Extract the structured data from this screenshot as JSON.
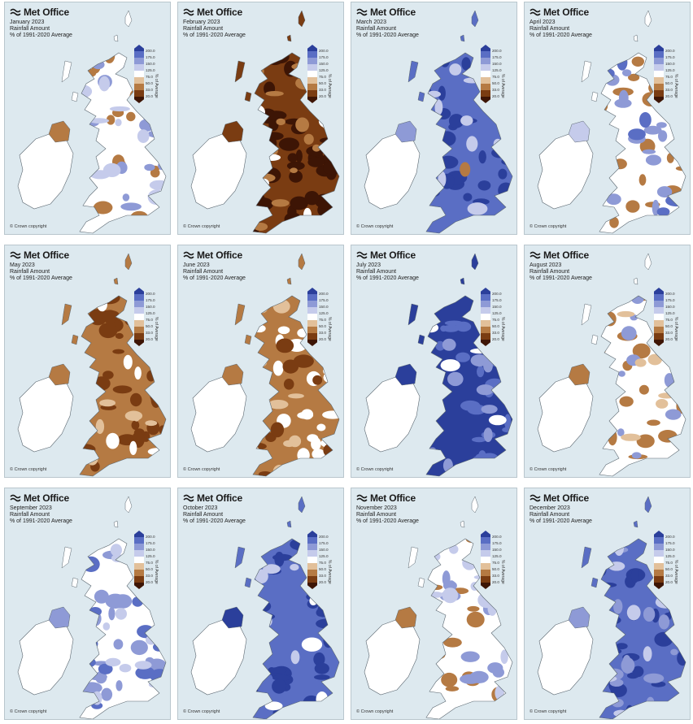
{
  "brand": "Met Office",
  "subtitle_line1": "Rainfall Amount",
  "subtitle_line2": "% of 1991-2020 Average",
  "copyright": "© Crown copyright",
  "legend": {
    "title": "% of Average",
    "labels": [
      "200.0",
      "175.0",
      "150.0",
      "125.0",
      "75.0",
      "50.0",
      "33.0",
      "20.0"
    ],
    "colors": [
      "#2b3f9b",
      "#5a6ec4",
      "#8e9ad6",
      "#c5cbeb",
      "#ffffff",
      "#e2c09a",
      "#b57a43",
      "#7a3c12",
      "#3d1505"
    ]
  },
  "colors": {
    "water": "#dde9ef",
    "ireland": "#ffffff",
    "outline": "#5b6770"
  },
  "maps": [
    {
      "month": "January 2023",
      "category": "near-average",
      "gb": "#ffffff",
      "blobs": [
        [
          "#b57a43",
          0.22
        ],
        [
          "#8e9ad6",
          0.14
        ],
        [
          "#c5cbeb",
          0.12
        ]
      ],
      "ni": "#b57a43"
    },
    {
      "month": "February 2023",
      "category": "very-dry",
      "gb": "#7a3c12",
      "blobs": [
        [
          "#3d1505",
          0.5
        ],
        [
          "#b57a43",
          0.25
        ],
        [
          "#ffffff",
          0.05
        ]
      ],
      "ni": "#7a3c12"
    },
    {
      "month": "March 2023",
      "category": "wet",
      "gb": "#5a6ec4",
      "blobs": [
        [
          "#2b3f9b",
          0.45
        ],
        [
          "#c5cbeb",
          0.12
        ],
        [
          "#b57a43",
          0.05
        ]
      ],
      "ni": "#8e9ad6"
    },
    {
      "month": "April 2023",
      "category": "mixed",
      "gb": "#ffffff",
      "blobs": [
        [
          "#b57a43",
          0.2
        ],
        [
          "#8e9ad6",
          0.2
        ],
        [
          "#5a6ec4",
          0.08
        ]
      ],
      "ni": "#c5cbeb"
    },
    {
      "month": "May 2023",
      "category": "dry",
      "gb": "#b57a43",
      "blobs": [
        [
          "#7a3c12",
          0.4
        ],
        [
          "#ffffff",
          0.08
        ],
        [
          "#e2c09a",
          0.1
        ]
      ],
      "ni": "#b57a43"
    },
    {
      "month": "June 2023",
      "category": "dry",
      "gb": "#b57a43",
      "blobs": [
        [
          "#ffffff",
          0.3
        ],
        [
          "#7a3c12",
          0.15
        ],
        [
          "#e2c09a",
          0.12
        ]
      ],
      "ni": "#b57a43"
    },
    {
      "month": "July 2023",
      "category": "very-wet",
      "gb": "#2b3f9b",
      "blobs": [
        [
          "#5a6ec4",
          0.3
        ],
        [
          "#8e9ad6",
          0.12
        ],
        [
          "#ffffff",
          0.05
        ]
      ],
      "ni": "#2b3f9b"
    },
    {
      "month": "August 2023",
      "category": "mixed",
      "gb": "#ffffff",
      "blobs": [
        [
          "#b57a43",
          0.22
        ],
        [
          "#8e9ad6",
          0.15
        ],
        [
          "#e2c09a",
          0.1
        ]
      ],
      "ni": "#b57a43"
    },
    {
      "month": "September 2023",
      "category": "wet",
      "gb": "#ffffff",
      "blobs": [
        [
          "#8e9ad6",
          0.3
        ],
        [
          "#5a6ec4",
          0.15
        ],
        [
          "#c5cbeb",
          0.15
        ]
      ],
      "ni": "#8e9ad6"
    },
    {
      "month": "October 2023",
      "category": "very-wet",
      "gb": "#5a6ec4",
      "blobs": [
        [
          "#2b3f9b",
          0.4
        ],
        [
          "#ffffff",
          0.1
        ],
        [
          "#c5cbeb",
          0.1
        ]
      ],
      "ni": "#2b3f9b"
    },
    {
      "month": "November 2023",
      "category": "wet-south",
      "gb": "#ffffff",
      "blobs": [
        [
          "#b57a43",
          0.2
        ],
        [
          "#8e9ad6",
          0.2
        ],
        [
          "#c5cbeb",
          0.15
        ]
      ],
      "ni": "#b57a43"
    },
    {
      "month": "December 2023",
      "category": "very-wet",
      "gb": "#5a6ec4",
      "blobs": [
        [
          "#2b3f9b",
          0.35
        ],
        [
          "#8e9ad6",
          0.15
        ],
        [
          "#c5cbeb",
          0.1
        ]
      ],
      "ni": "#8e9ad6"
    }
  ]
}
